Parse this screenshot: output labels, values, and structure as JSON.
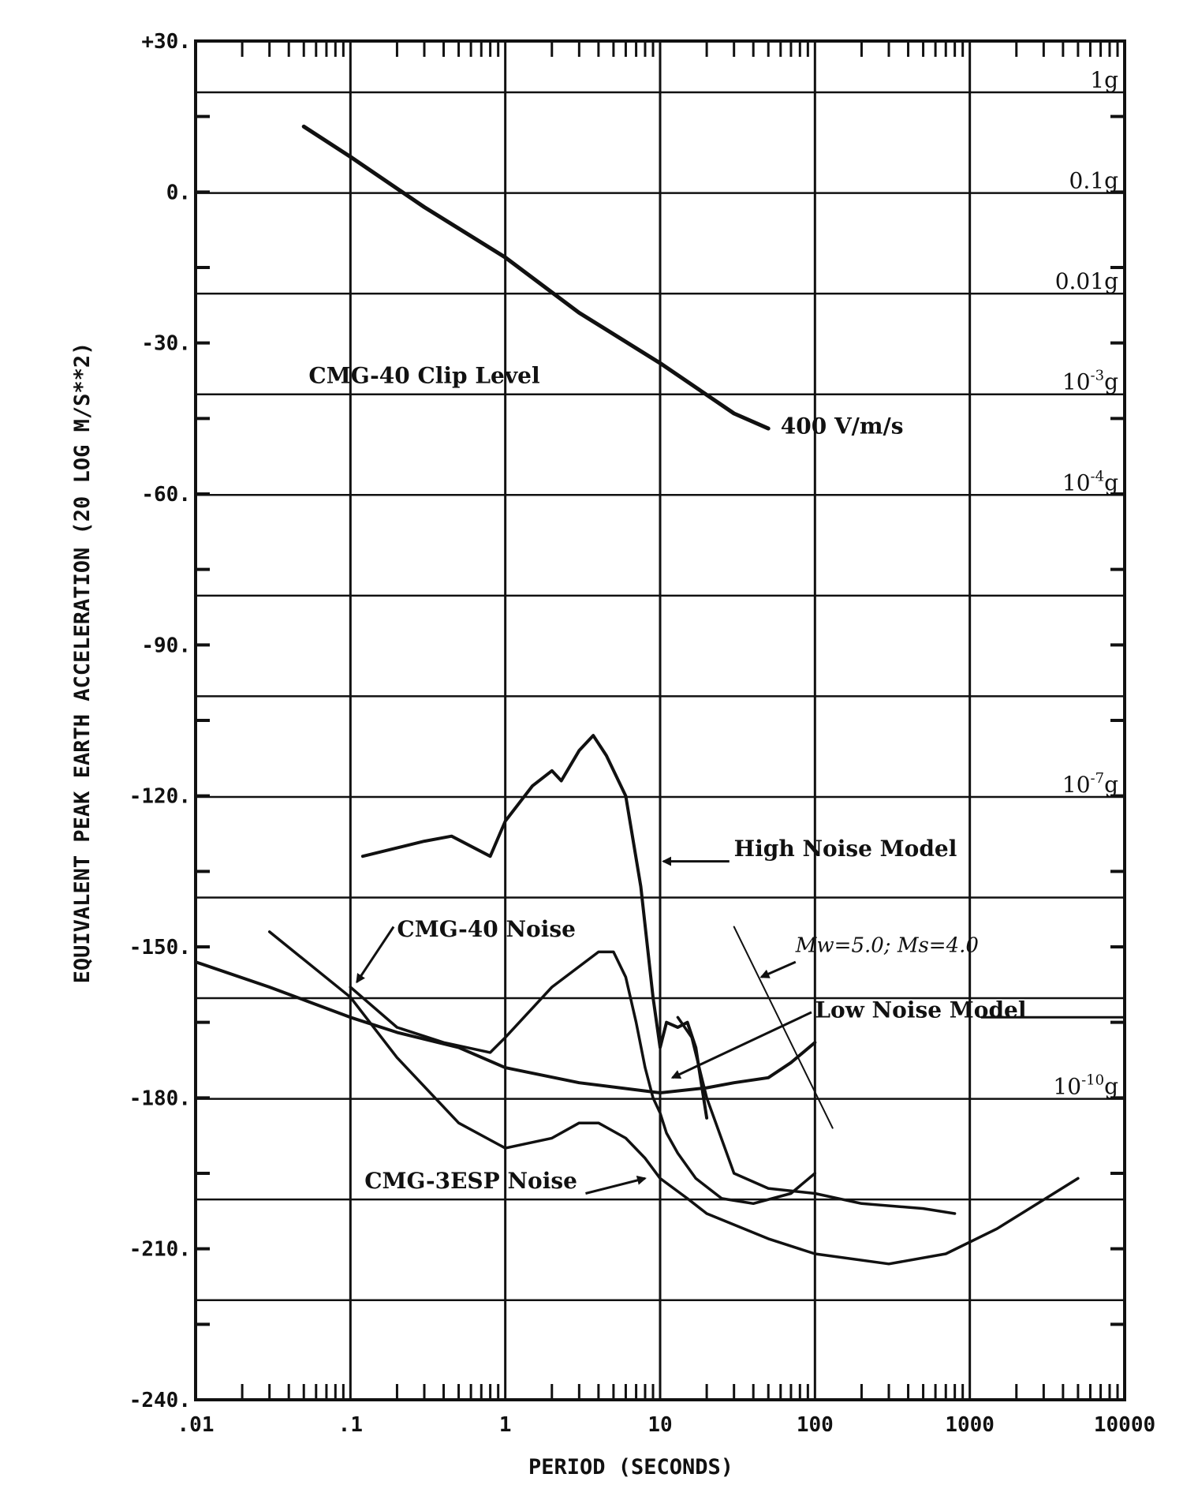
{
  "chart_data": {
    "type": "line",
    "title": "",
    "xlabel": "PERIOD (SECONDS)",
    "ylabel": "EQUIVALENT PEAK EARTH ACCELERATION (20 LOG M/S**2)",
    "x_scale": "log",
    "xlim": [
      0.01,
      10000
    ],
    "ylim": [
      -240,
      30
    ],
    "grid": true,
    "x_ticks": [
      {
        "value": 0.01,
        "label": ".01"
      },
      {
        "value": 0.1,
        "label": ".1"
      },
      {
        "value": 1,
        "label": "1"
      },
      {
        "value": 10,
        "label": "10"
      },
      {
        "value": 100,
        "label": "100"
      },
      {
        "value": 1000,
        "label": "1000"
      },
      {
        "value": 10000,
        "label": "10000"
      }
    ],
    "y_ticks": [
      {
        "value": 30,
        "label": "+30."
      },
      {
        "value": 0,
        "label": "0."
      },
      {
        "value": -30,
        "label": "-30."
      },
      {
        "value": -60,
        "label": "-60."
      },
      {
        "value": -90,
        "label": "-90."
      },
      {
        "value": -120,
        "label": "-120."
      },
      {
        "value": -150,
        "label": "-150."
      },
      {
        "value": -180,
        "label": "-180."
      },
      {
        "value": -210,
        "label": "-210."
      },
      {
        "value": -240,
        "label": "-240."
      }
    ],
    "g_levels": [
      {
        "value": 19.8,
        "base": "1g",
        "exp": ""
      },
      {
        "value": -0.2,
        "base": "0.1",
        "exp": "",
        "suffix": "g"
      },
      {
        "value": -20.2,
        "base": "0.01",
        "exp": "",
        "suffix": "g"
      },
      {
        "value": -40.2,
        "base": "10",
        "exp": "-3",
        "suffix": "g"
      },
      {
        "value": -60.2,
        "base": "10",
        "exp": "-4",
        "suffix": "g"
      },
      {
        "value": -120.2,
        "base": "10",
        "exp": "-7",
        "suffix": "g"
      },
      {
        "value": -180.2,
        "base": "10",
        "exp": "-10",
        "suffix": "g"
      }
    ],
    "series": [
      {
        "key": "clip",
        "x": [
          0.05,
          0.1,
          0.3,
          1,
          3,
          10,
          30,
          50
        ],
        "y": [
          13,
          7,
          -3,
          -13,
          -24,
          -34,
          -44,
          -47
        ]
      },
      {
        "key": "high-noise",
        "x": [
          0.12,
          0.3,
          0.45,
          0.8,
          1,
          1.5,
          2,
          2.3,
          3,
          3.7,
          4.5,
          6,
          7.5,
          9,
          10,
          11,
          13,
          15,
          17,
          20
        ],
        "y": [
          -132,
          -129,
          -128,
          -132,
          -125,
          -118,
          -115,
          -117,
          -111,
          -108,
          -112,
          -120,
          -138,
          -160,
          -170,
          -165,
          -166,
          -165,
          -170,
          -184
        ]
      },
      {
        "key": "low-noise",
        "x": [
          0.01,
          0.03,
          0.1,
          0.2,
          0.5,
          1,
          3,
          10,
          20,
          30,
          50,
          70,
          100
        ],
        "y": [
          -153,
          -158,
          -164,
          -167,
          -170,
          -174,
          -177,
          -179,
          -178,
          -177,
          -176,
          -173,
          -169
        ]
      },
      {
        "key": "cmg40-noise",
        "x": [
          0.1,
          0.2,
          0.4,
          0.8,
          1,
          2,
          4,
          5,
          6,
          7,
          8,
          9,
          10,
          11,
          13,
          17,
          25,
          40,
          70,
          100
        ],
        "y": [
          -158,
          -166,
          -169,
          -171,
          -168,
          -158,
          -151,
          -151,
          -156,
          -165,
          -174,
          -180,
          -183,
          -187,
          -191,
          -196,
          -200,
          -201,
          -199,
          -195
        ]
      },
      {
        "key": "cmg3esp-noise",
        "x": [
          0.03,
          0.1,
          0.2,
          0.5,
          1,
          2,
          3,
          4,
          6,
          8,
          10,
          15,
          20,
          50,
          100,
          300,
          700,
          1500,
          5000
        ],
        "y": [
          -147,
          -160,
          -172,
          -185,
          -190,
          -188,
          -185,
          -185,
          -188,
          -192,
          -196,
          -200,
          -203,
          -208,
          -211,
          -213,
          -211,
          -206,
          -196
        ]
      },
      {
        "key": "mw-line",
        "x": [
          30,
          130
        ],
        "y": [
          -146,
          -186
        ]
      },
      {
        "key": "tail",
        "x": [
          13,
          16,
          20,
          30,
          50,
          100,
          200,
          500,
          800
        ],
        "y": [
          -164,
          -168,
          -180,
          -195,
          -198,
          -199,
          -201,
          -202,
          -203
        ]
      }
    ],
    "annotations": [
      {
        "key": "clip-title",
        "text": "CMG-40 Clip Level"
      },
      {
        "key": "clip-value",
        "text": "400 V/m/s"
      },
      {
        "key": "high-noise",
        "text": "High Noise Model"
      },
      {
        "key": "cmg40-noise",
        "text": "CMG-40 Noise"
      },
      {
        "key": "mw",
        "text": "Mw=5.0; Ms=4.0"
      },
      {
        "key": "low-noise",
        "text": "Low Noise Model"
      },
      {
        "key": "cmg3esp-noise",
        "text": "CMG-3ESP Noise"
      }
    ]
  }
}
